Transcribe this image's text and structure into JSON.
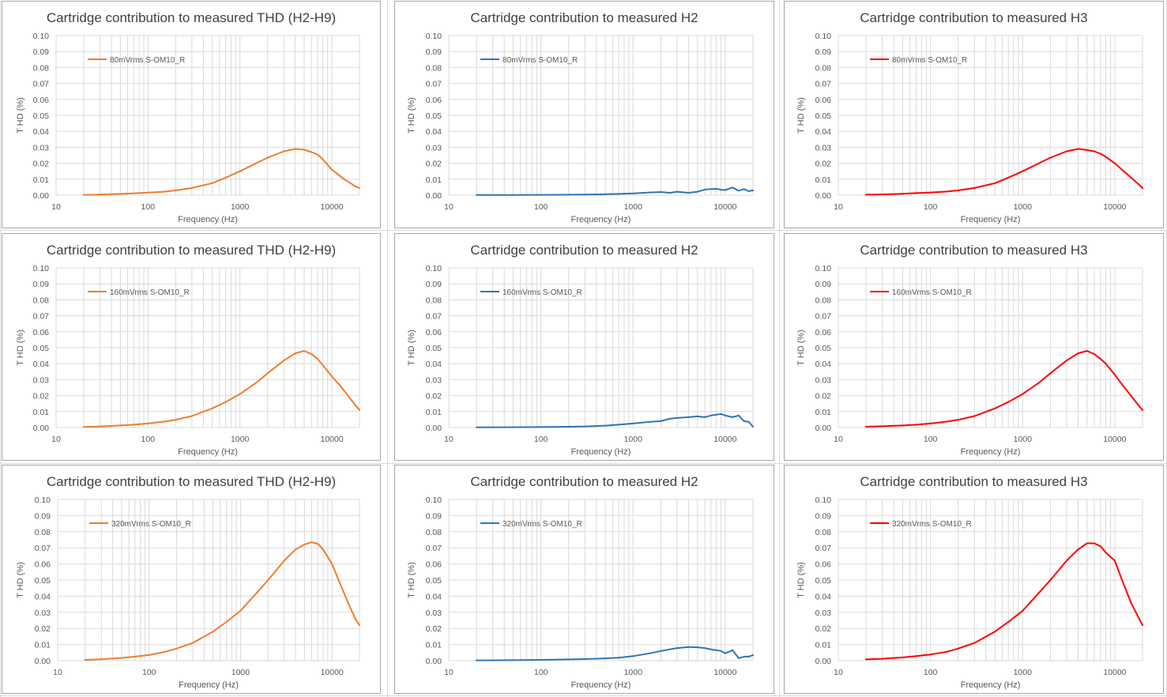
{
  "colors": {
    "thd": "#ED7D31",
    "h2": "#2E75B6",
    "h3": "#FF0000",
    "grid": "#d9d9d9",
    "border": "#a6a6a6"
  },
  "chart_data": [
    {
      "type": "line",
      "title": "Cartridge contribution to measured THD (H2-H9)",
      "xlabel": "Frequency (Hz)",
      "ylabel": "T HD (%)",
      "xscale": "log",
      "xlim": [
        10,
        20000
      ],
      "ylim": [
        0,
        0.1
      ],
      "xticks": [
        "10",
        "100",
        "1000",
        "10000"
      ],
      "yticks": [
        "0.00",
        "0.01",
        "0.02",
        "0.03",
        "0.04",
        "0.05",
        "0.06",
        "0.07",
        "0.08",
        "0.09",
        "0.10"
      ],
      "legend": "top-left",
      "grid": true,
      "color": "#ED7D31",
      "series": [
        {
          "name": "80mVrms S-OM10_R",
          "x": [
            20,
            30,
            50,
            70,
            100,
            150,
            200,
            300,
            500,
            700,
            1000,
            1500,
            2000,
            3000,
            4000,
            5000,
            6000,
            7000,
            8000,
            9000,
            10000,
            12000,
            14000,
            16000,
            18000,
            20000
          ],
          "y": [
            0.0002,
            0.0004,
            0.0008,
            0.0012,
            0.0016,
            0.0022,
            0.003,
            0.0045,
            0.0075,
            0.011,
            0.015,
            0.02,
            0.0235,
            0.0275,
            0.029,
            0.0285,
            0.027,
            0.0255,
            0.0225,
            0.019,
            0.016,
            0.0125,
            0.0095,
            0.0075,
            0.0055,
            0.0045
          ]
        }
      ]
    },
    {
      "type": "line",
      "title": "Cartridge contribution to measured H2",
      "xlabel": "Frequency (Hz)",
      "ylabel": "T HD (%)",
      "xscale": "log",
      "xlim": [
        10,
        20000
      ],
      "ylim": [
        0,
        0.1
      ],
      "xticks": [
        "10",
        "100",
        "1000",
        "10000"
      ],
      "yticks": [
        "0.00",
        "0.01",
        "0.02",
        "0.03",
        "0.04",
        "0.05",
        "0.06",
        "0.07",
        "0.08",
        "0.09",
        "0.10"
      ],
      "legend": "top-left",
      "grid": true,
      "color": "#2E75B6",
      "series": [
        {
          "name": "80mVrms S-OM10_R",
          "x": [
            20,
            50,
            100,
            200,
            300,
            500,
            700,
            1000,
            1500,
            2000,
            2500,
            3000,
            4000,
            5000,
            6000,
            7000,
            8000,
            9000,
            10000,
            12000,
            14000,
            16000,
            18000,
            20000
          ],
          "y": [
            0.0001,
            0.0001,
            0.0002,
            0.0003,
            0.0004,
            0.0006,
            0.0008,
            0.0011,
            0.0017,
            0.002,
            0.0015,
            0.0022,
            0.0015,
            0.0022,
            0.0035,
            0.0038,
            0.004,
            0.0034,
            0.0032,
            0.0048,
            0.0028,
            0.0038,
            0.0025,
            0.003
          ]
        }
      ]
    },
    {
      "type": "line",
      "title": "Cartridge contribution to measured H3",
      "xlabel": "Frequency (Hz)",
      "ylabel": "T HD (%)",
      "xscale": "log",
      "xlim": [
        10,
        20000
      ],
      "ylim": [
        0,
        0.1
      ],
      "xticks": [
        "10",
        "100",
        "1000",
        "10000"
      ],
      "yticks": [
        "0.00",
        "0.01",
        "0.02",
        "0.03",
        "0.04",
        "0.05",
        "0.06",
        "0.07",
        "0.08",
        "0.09",
        "0.10"
      ],
      "legend": "top-left",
      "grid": true,
      "color": "#FF0000",
      "series": [
        {
          "name": "80mVrms S-OM10_R",
          "x": [
            20,
            30,
            50,
            70,
            100,
            150,
            200,
            300,
            500,
            700,
            1000,
            1500,
            2000,
            3000,
            4000,
            5000,
            6000,
            7000,
            8000,
            10000,
            12000,
            15000,
            18000,
            20000
          ],
          "y": [
            0.0003,
            0.0005,
            0.0009,
            0.0013,
            0.0017,
            0.0023,
            0.003,
            0.0045,
            0.0075,
            0.011,
            0.015,
            0.02,
            0.0235,
            0.0275,
            0.029,
            0.0283,
            0.0275,
            0.026,
            0.024,
            0.02,
            0.016,
            0.011,
            0.007,
            0.0045
          ]
        }
      ]
    },
    {
      "type": "line",
      "title": "Cartridge contribution to measured THD (H2-H9)",
      "xlabel": "Frequency (Hz)",
      "ylabel": "T HD (%)",
      "xscale": "log",
      "xlim": [
        10,
        20000
      ],
      "ylim": [
        0,
        0.1
      ],
      "xticks": [
        "10",
        "100",
        "1000",
        "10000"
      ],
      "yticks": [
        "0.00",
        "0.01",
        "0.02",
        "0.03",
        "0.04",
        "0.05",
        "0.06",
        "0.07",
        "0.08",
        "0.09",
        "0.10"
      ],
      "legend": "top-left",
      "grid": true,
      "color": "#ED7D31",
      "series": [
        {
          "name": "160mVrms S-OM10_R",
          "x": [
            20,
            30,
            50,
            70,
            100,
            150,
            200,
            300,
            500,
            700,
            1000,
            1500,
            2000,
            3000,
            4000,
            5000,
            6000,
            7000,
            8000,
            10000,
            12000,
            15000,
            18000,
            20000
          ],
          "y": [
            0.0004,
            0.0007,
            0.0013,
            0.0018,
            0.0025,
            0.0037,
            0.0048,
            0.0072,
            0.012,
            0.016,
            0.021,
            0.028,
            0.034,
            0.042,
            0.0465,
            0.048,
            0.046,
            0.043,
            0.039,
            0.032,
            0.027,
            0.02,
            0.014,
            0.011
          ]
        }
      ]
    },
    {
      "type": "line",
      "title": "Cartridge contribution to measured H2",
      "xlabel": "Frequency (Hz)",
      "ylabel": "T HD (%)",
      "xscale": "log",
      "xlim": [
        10,
        20000
      ],
      "ylim": [
        0,
        0.1
      ],
      "xticks": [
        "10",
        "100",
        "1000",
        "10000"
      ],
      "yticks": [
        "0.00",
        "0.01",
        "0.02",
        "0.03",
        "0.04",
        "0.05",
        "0.06",
        "0.07",
        "0.08",
        "0.09",
        "0.10"
      ],
      "legend": "top-left",
      "grid": true,
      "color": "#2E75B6",
      "series": [
        {
          "name": "160mVrms S-OM10_R",
          "x": [
            20,
            50,
            100,
            200,
            300,
            500,
            700,
            1000,
            1500,
            2000,
            2500,
            3000,
            4000,
            5000,
            6000,
            7000,
            8000,
            9000,
            10000,
            12000,
            14000,
            16000,
            18000,
            20000
          ],
          "y": [
            0.0001,
            0.0002,
            0.0003,
            0.0005,
            0.0007,
            0.0012,
            0.0018,
            0.0025,
            0.0035,
            0.004,
            0.0055,
            0.006,
            0.0065,
            0.007,
            0.0065,
            0.0075,
            0.008,
            0.0085,
            0.0075,
            0.0065,
            0.0075,
            0.004,
            0.0035,
            0.0005
          ]
        }
      ]
    },
    {
      "type": "line",
      "title": "Cartridge contribution to measured H3",
      "xlabel": "Frequency (Hz)",
      "ylabel": "T HD (%)",
      "xscale": "log",
      "xlim": [
        10,
        20000
      ],
      "ylim": [
        0,
        0.1
      ],
      "xticks": [
        "10",
        "100",
        "1000",
        "10000"
      ],
      "yticks": [
        "0.00",
        "0.01",
        "0.02",
        "0.03",
        "0.04",
        "0.05",
        "0.06",
        "0.07",
        "0.08",
        "0.09",
        "0.10"
      ],
      "legend": "top-left",
      "grid": true,
      "color": "#FF0000",
      "series": [
        {
          "name": "160mVrms S-OM10_R",
          "x": [
            20,
            30,
            50,
            70,
            100,
            150,
            200,
            300,
            500,
            700,
            1000,
            1500,
            2000,
            3000,
            4000,
            5000,
            6000,
            7000,
            8000,
            10000,
            12000,
            15000,
            18000,
            20000
          ],
          "y": [
            0.0005,
            0.0008,
            0.0013,
            0.0018,
            0.0025,
            0.0037,
            0.0048,
            0.0072,
            0.012,
            0.016,
            0.021,
            0.028,
            0.034,
            0.042,
            0.0465,
            0.048,
            0.046,
            0.043,
            0.04,
            0.033,
            0.027,
            0.02,
            0.014,
            0.011
          ]
        }
      ]
    },
    {
      "type": "line",
      "title": "Cartridge contribution to measured THD (H2-H9)",
      "xlabel": "Frequency (Hz)",
      "ylabel": "T HD (%)",
      "xscale": "log",
      "xlim": [
        10,
        20000
      ],
      "ylim": [
        0,
        0.1
      ],
      "xticks": [
        "10",
        "100",
        "1000",
        "10000"
      ],
      "yticks": [
        "0.00",
        "0.01",
        "0.02",
        "0.03",
        "0.04",
        "0.05",
        "0.06",
        "0.07",
        "0.08",
        "0.09",
        "0.10"
      ],
      "legend": "top-left",
      "grid": true,
      "color": "#ED7D31",
      "series": [
        {
          "name": "320mVrms S-OM10_R",
          "x": [
            20,
            30,
            50,
            70,
            100,
            150,
            200,
            300,
            500,
            700,
            1000,
            1500,
            2000,
            3000,
            4000,
            5000,
            6000,
            7000,
            8000,
            10000,
            12000,
            15000,
            18000,
            20000
          ],
          "y": [
            0.0005,
            0.0009,
            0.0017,
            0.0025,
            0.0035,
            0.0055,
            0.0075,
            0.011,
            0.018,
            0.024,
            0.031,
            0.042,
            0.05,
            0.062,
            0.069,
            0.072,
            0.0735,
            0.0725,
            0.069,
            0.06,
            0.049,
            0.036,
            0.026,
            0.022
          ]
        }
      ]
    },
    {
      "type": "line",
      "title": "Cartridge contribution to measured H2",
      "xlabel": "Frequency (Hz)",
      "ylabel": "T HD (%)",
      "xscale": "log",
      "xlim": [
        10,
        20000
      ],
      "ylim": [
        0,
        0.1
      ],
      "xticks": [
        "10",
        "100",
        "1000",
        "10000"
      ],
      "yticks": [
        "0.00",
        "0.01",
        "0.02",
        "0.03",
        "0.04",
        "0.05",
        "0.06",
        "0.07",
        "0.08",
        "0.09",
        "0.10"
      ],
      "legend": "top-left",
      "grid": true,
      "color": "#2E75B6",
      "series": [
        {
          "name": "320mVrms S-OM10_R",
          "x": [
            20,
            50,
            100,
            200,
            300,
            500,
            700,
            1000,
            1500,
            2000,
            2500,
            3000,
            4000,
            5000,
            6000,
            7000,
            8000,
            9000,
            10000,
            12000,
            14000,
            16000,
            18000,
            20000
          ],
          "y": [
            0.0002,
            0.0003,
            0.0005,
            0.0008,
            0.001,
            0.0014,
            0.0018,
            0.0028,
            0.0045,
            0.006,
            0.007,
            0.0078,
            0.0085,
            0.0083,
            0.0078,
            0.007,
            0.0065,
            0.006,
            0.0045,
            0.0065,
            0.0015,
            0.0025,
            0.0025,
            0.0035
          ]
        }
      ]
    },
    {
      "type": "line",
      "title": "Cartridge contribution to measured H3",
      "xlabel": "Frequency (Hz)",
      "ylabel": "T HD (%)",
      "xscale": "log",
      "xlim": [
        10,
        20000
      ],
      "ylim": [
        0,
        0.1
      ],
      "xticks": [
        "10",
        "100",
        "1000",
        "10000"
      ],
      "yticks": [
        "0.00",
        "0.01",
        "0.02",
        "0.03",
        "0.04",
        "0.05",
        "0.06",
        "0.07",
        "0.08",
        "0.09",
        "0.10"
      ],
      "legend": "top-left",
      "grid": true,
      "color": "#FF0000",
      "series": [
        {
          "name": "320mVrms S-OM10_R",
          "x": [
            20,
            30,
            50,
            70,
            100,
            150,
            200,
            300,
            500,
            700,
            1000,
            1500,
            2000,
            3000,
            4000,
            5000,
            6000,
            7000,
            8000,
            10000,
            12000,
            15000,
            18000,
            20000
          ],
          "y": [
            0.0008,
            0.0012,
            0.002,
            0.0028,
            0.0038,
            0.0055,
            0.0075,
            0.011,
            0.018,
            0.024,
            0.031,
            0.042,
            0.05,
            0.062,
            0.069,
            0.0728,
            0.0728,
            0.071,
            0.067,
            0.062,
            0.05,
            0.036,
            0.027,
            0.022
          ]
        }
      ]
    }
  ]
}
